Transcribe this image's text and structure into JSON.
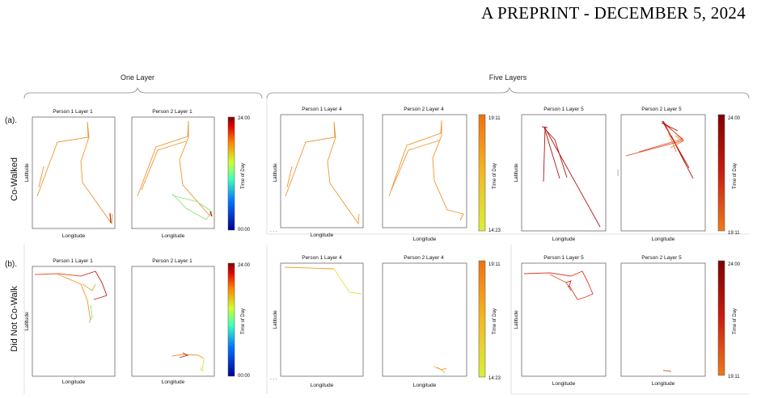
{
  "header": {
    "text": "A PREPRINT - DECEMBER 5, 2024"
  },
  "groups": {
    "one_layer": "One Layer",
    "five_layers": "Five Layers"
  },
  "rows": [
    {
      "tag": "(a).",
      "label": "Co-Walked"
    },
    {
      "tag": "(b).",
      "label": "Did Not Co-Walk"
    }
  ],
  "axis": {
    "x": "Longitude",
    "y": "Latitude"
  },
  "colorbars": {
    "layer1": {
      "top": "24:00",
      "bottom": "00:00",
      "title": "Time of Day"
    },
    "layer4": {
      "top": "19:11",
      "bottom": "14:23",
      "title": "Time of Day"
    },
    "layer5": {
      "top": "24:00",
      "bottom": "19:11",
      "title": "Time of Day"
    }
  },
  "colors": {
    "orange": "#f0942e",
    "dark_red": "#b01515",
    "red": "#e03a2a",
    "green": "#8fe07a",
    "yellow": "#e8e03a"
  },
  "panels": [
    {
      "id": "a1",
      "title": "Person 1 Layer 1"
    },
    {
      "id": "a2",
      "title": "Person 2 Layer 1"
    },
    {
      "id": "a3",
      "title": "Person 1 Layer 4"
    },
    {
      "id": "a4",
      "title": "Person 2 Layer 4"
    },
    {
      "id": "a5",
      "title": "Person 1 Layer 5"
    },
    {
      "id": "a6",
      "title": "Person 2 Layer 5"
    },
    {
      "id": "b1",
      "title": "Person 1 Layer 1"
    },
    {
      "id": "b2",
      "title": "Person 2 Layer 1"
    },
    {
      "id": "b3",
      "title": "Person 1 Layer 4"
    },
    {
      "id": "b4",
      "title": "Person 2 Layer 4"
    },
    {
      "id": "b5",
      "title": "Person 1 Layer 5"
    },
    {
      "id": "b6",
      "title": "Person 2 Layer 5"
    }
  ]
}
